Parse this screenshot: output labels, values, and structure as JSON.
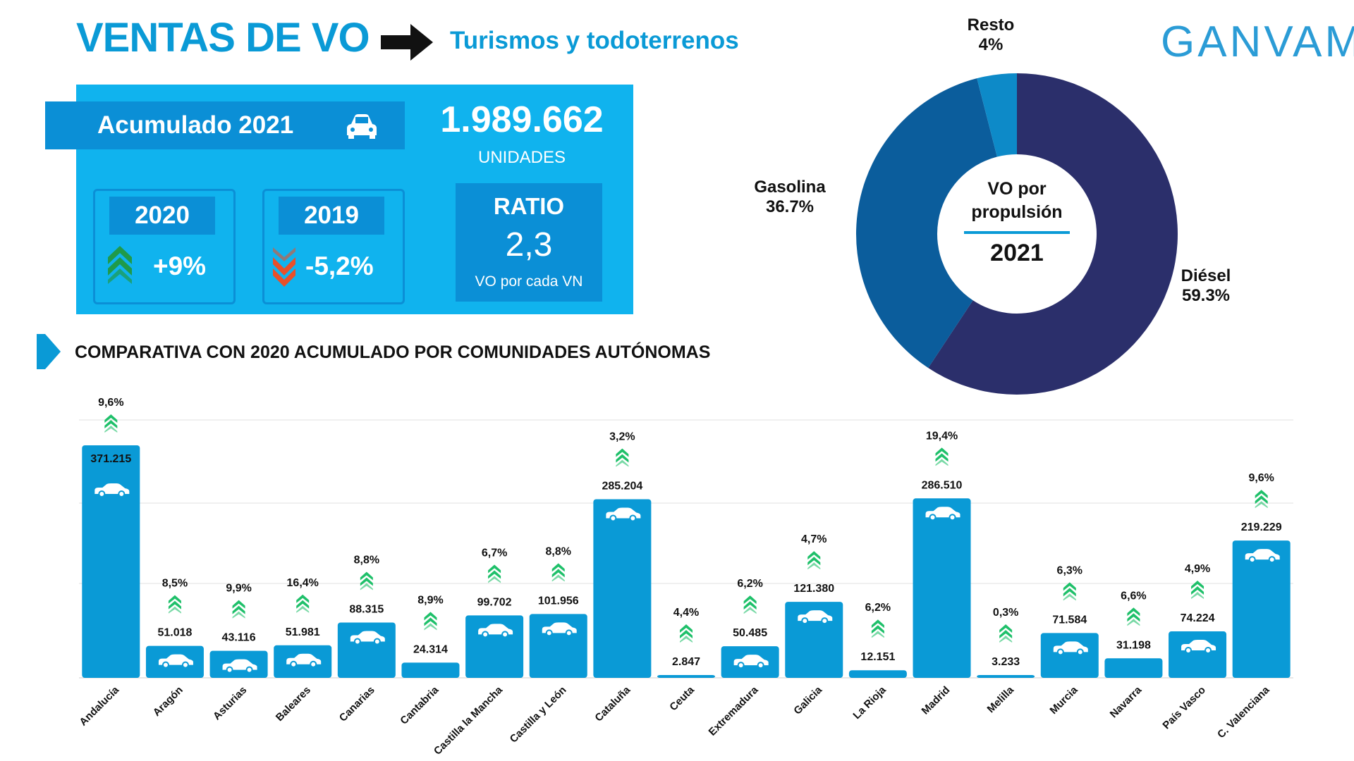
{
  "header": {
    "title": "VENTAS DE VO",
    "subtitle": "Turismos y todoterrenos",
    "logo": "GANVAM"
  },
  "summary": {
    "acumulado_label": "Acumulado 2021",
    "total": "1.989.662",
    "units": "UNIDADES",
    "y2020_label": "2020",
    "y2020_pct": "+9%",
    "y2019_label": "2019",
    "y2019_pct": "-5,2%",
    "ratio_title": "RATIO",
    "ratio_value": "2,3",
    "ratio_sub": "VO por cada VN",
    "colors": {
      "panel": "#10b3ee",
      "box": "#0b8fd6",
      "up": "#1f9a4a",
      "down": "#e8502a"
    }
  },
  "section_title": "COMPARATIVA CON 2020 ACUMULADO POR COMUNIDADES AUTÓNOMAS",
  "chart_data": [
    {
      "type": "pie",
      "center_label": "VO por propulsión",
      "center_year": "2021",
      "slices": [
        {
          "name": "Diésel",
          "value": 59.3,
          "label": "59.3%",
          "color": "#2b2f6b"
        },
        {
          "name": "Gasolina",
          "value": 36.7,
          "label": "36.7%",
          "color": "#0b5d9c"
        },
        {
          "name": "Resto",
          "value": 4,
          "label": "4%",
          "color": "#0d8ac8"
        }
      ]
    },
    {
      "type": "bar",
      "categories": [
        "Andalucía",
        "Aragón",
        "Asturias",
        "Baleares",
        "Canarias",
        "Cantabria",
        "Castilla la Mancha",
        "Castilla y León",
        "Cataluña",
        "Ceuta",
        "Extremadura",
        "Galicia",
        "La Rioja",
        "Madrid",
        "Melilla",
        "Murcia",
        "Navarra",
        "País Vasco",
        "C. Valenciana"
      ],
      "values": [
        371215,
        51018,
        43116,
        51981,
        88315,
        24314,
        99702,
        101956,
        285204,
        2847,
        50485,
        121380,
        12151,
        286510,
        3233,
        71584,
        31198,
        74224,
        219229
      ],
      "value_labels": [
        "371.215",
        "51.018",
        "43.116",
        "51.981",
        "88.315",
        "24.314",
        "99.702",
        "101.956",
        "285.204",
        "2.847",
        "50.485",
        "121.380",
        "12.151",
        "286.510",
        "3.233",
        "71.584",
        "31.198",
        "74.224",
        "219.229"
      ],
      "change_labels": [
        "9,6%",
        "8,5%",
        "9,9%",
        "16,4%",
        "8,8%",
        "8,9%",
        "6,7%",
        "8,8%",
        "3,2%",
        "4,4%",
        "6,2%",
        "4,7%",
        "6,2%",
        "19,4%",
        "0,3%",
        "6,3%",
        "6,6%",
        "4,9%",
        "9,6%"
      ],
      "ylim": [
        0,
        371215
      ],
      "grid": true,
      "bar_color": "#0a9ad6",
      "arrow_color": "#1fc06a"
    }
  ]
}
